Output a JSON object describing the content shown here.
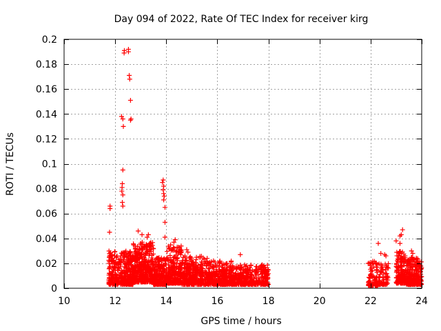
{
  "chart_data": {
    "type": "scatter",
    "title": "Day 094 of 2022, Rate Of TEC Index for receiver kirg",
    "xlabel": "GPS time / hours",
    "ylabel": "ROTI / TECUs",
    "xlim": [
      10,
      24
    ],
    "ylim": [
      0,
      0.2
    ],
    "x_ticks": [
      10,
      12,
      14,
      16,
      18,
      20,
      22,
      24
    ],
    "y_ticks": [
      0,
      0.02,
      0.04,
      0.06,
      0.08,
      0.1,
      0.12,
      0.14,
      0.16,
      0.18,
      0.2
    ],
    "x_tick_labels": [
      "10",
      "12",
      "14",
      "16",
      "18",
      "20",
      "22",
      "24"
    ],
    "y_tick_labels": [
      "0",
      "0.02",
      "0.04",
      "0.06",
      "0.08",
      "0.1",
      "0.12",
      "0.14",
      "0.16",
      "0.18",
      "0.2"
    ],
    "grid": true,
    "marker": "+",
    "color": "#ff0000",
    "series": [
      {
        "name": "ROTI",
        "outliers": [
          [
            11.8,
            0.066
          ],
          [
            11.8,
            0.064
          ],
          [
            11.78,
            0.045
          ],
          [
            12.25,
            0.138
          ],
          [
            12.3,
            0.136
          ],
          [
            12.32,
            0.13
          ],
          [
            12.3,
            0.095
          ],
          [
            12.28,
            0.084
          ],
          [
            12.27,
            0.081
          ],
          [
            12.26,
            0.078
          ],
          [
            12.3,
            0.075
          ],
          [
            12.28,
            0.069
          ],
          [
            12.3,
            0.066
          ],
          [
            12.35,
            0.189
          ],
          [
            12.36,
            0.191
          ],
          [
            12.52,
            0.19
          ],
          [
            12.52,
            0.192
          ],
          [
            12.55,
            0.171
          ],
          [
            12.57,
            0.168
          ],
          [
            12.6,
            0.151
          ],
          [
            12.6,
            0.135
          ],
          [
            12.62,
            0.136
          ],
          [
            13.85,
            0.085
          ],
          [
            13.88,
            0.087
          ],
          [
            13.9,
            0.082
          ],
          [
            13.88,
            0.079
          ],
          [
            13.9,
            0.076
          ],
          [
            13.92,
            0.074
          ],
          [
            13.9,
            0.071
          ],
          [
            13.95,
            0.065
          ],
          [
            13.95,
            0.053
          ],
          [
            13.95,
            0.041
          ],
          [
            12.9,
            0.046
          ],
          [
            13.05,
            0.043
          ],
          [
            13.3,
            0.043
          ],
          [
            13.25,
            0.041
          ],
          [
            14.35,
            0.039
          ],
          [
            14.3,
            0.037
          ],
          [
            14.8,
            0.031
          ],
          [
            14.85,
            0.029
          ],
          [
            16.9,
            0.027
          ],
          [
            15.6,
            0.024
          ],
          [
            22.3,
            0.036
          ],
          [
            22.4,
            0.028
          ],
          [
            22.55,
            0.027
          ],
          [
            22.6,
            0.026
          ],
          [
            23.0,
            0.038
          ],
          [
            23.15,
            0.042
          ],
          [
            23.2,
            0.043
          ],
          [
            23.25,
            0.047
          ],
          [
            23.15,
            0.036
          ],
          [
            23.6,
            0.03
          ],
          [
            23.65,
            0.028
          ]
        ],
        "clusters": [
          {
            "x_range": [
              11.75,
              12.2
            ],
            "y_range": [
              0.003,
              0.03
            ],
            "count": 140
          },
          {
            "x_range": [
              12.2,
              12.7
            ],
            "y_range": [
              0.003,
              0.03
            ],
            "count": 220
          },
          {
            "x_range": [
              12.7,
              13.5
            ],
            "y_range": [
              0.005,
              0.037
            ],
            "count": 420
          },
          {
            "x_range": [
              13.5,
              14.0
            ],
            "y_range": [
              0.003,
              0.025
            ],
            "count": 220
          },
          {
            "x_range": [
              14.0,
              14.6
            ],
            "y_range": [
              0.004,
              0.035
            ],
            "count": 260
          },
          {
            "x_range": [
              14.6,
              15.5
            ],
            "y_range": [
              0.003,
              0.026
            ],
            "count": 320
          },
          {
            "x_range": [
              15.5,
              16.6
            ],
            "y_range": [
              0.003,
              0.022
            ],
            "count": 350
          },
          {
            "x_range": [
              16.6,
              18.0
            ],
            "y_range": [
              0.003,
              0.019
            ],
            "count": 400
          },
          {
            "x_range": [
              21.9,
              22.3
            ],
            "y_range": [
              0.002,
              0.022
            ],
            "count": 90
          },
          {
            "x_range": [
              22.3,
              22.7
            ],
            "y_range": [
              0.003,
              0.02
            ],
            "count": 60
          },
          {
            "x_range": [
              23.0,
              23.4
            ],
            "y_range": [
              0.004,
              0.03
            ],
            "count": 160
          },
          {
            "x_range": [
              23.4,
              24.0
            ],
            "y_range": [
              0.003,
              0.025
            ],
            "count": 260
          }
        ]
      }
    ]
  }
}
